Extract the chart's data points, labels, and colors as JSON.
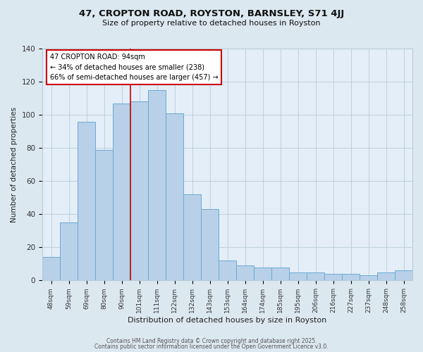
{
  "title": "47, CROPTON ROAD, ROYSTON, BARNSLEY, S71 4JJ",
  "subtitle": "Size of property relative to detached houses in Royston",
  "xlabel": "Distribution of detached houses by size in Royston",
  "ylabel": "Number of detached properties",
  "footer_line1": "Contains HM Land Registry data © Crown copyright and database right 2025.",
  "footer_line2": "Contains public sector information licensed under the Open Government Licence v3.0.",
  "bar_labels": [
    "48sqm",
    "59sqm",
    "69sqm",
    "80sqm",
    "90sqm",
    "101sqm",
    "111sqm",
    "122sqm",
    "132sqm",
    "143sqm",
    "153sqm",
    "164sqm",
    "174sqm",
    "185sqm",
    "195sqm",
    "206sqm",
    "216sqm",
    "227sqm",
    "237sqm",
    "248sqm",
    "258sqm"
  ],
  "bar_values": [
    14,
    35,
    96,
    79,
    107,
    108,
    115,
    101,
    52,
    43,
    12,
    9,
    8,
    8,
    5,
    5,
    4,
    4,
    3,
    5,
    6
  ],
  "bar_color": "#b8d0e8",
  "bar_edge_color": "#6aaad4",
  "bg_color": "#dce8f0",
  "plot_bg_color": "#e4eef8",
  "grid_color": "#b8ccd8",
  "vline_x_index": 4.5,
  "vline_color": "#cc0000",
  "annotation_text": "47 CROPTON ROAD: 94sqm\n← 34% of detached houses are smaller (238)\n66% of semi-detached houses are larger (457) →",
  "annotation_box_color": "#ffffff",
  "annotation_border_color": "#cc0000",
  "ylim": [
    0,
    140
  ],
  "yticks": [
    0,
    20,
    40,
    60,
    80,
    100,
    120,
    140
  ]
}
